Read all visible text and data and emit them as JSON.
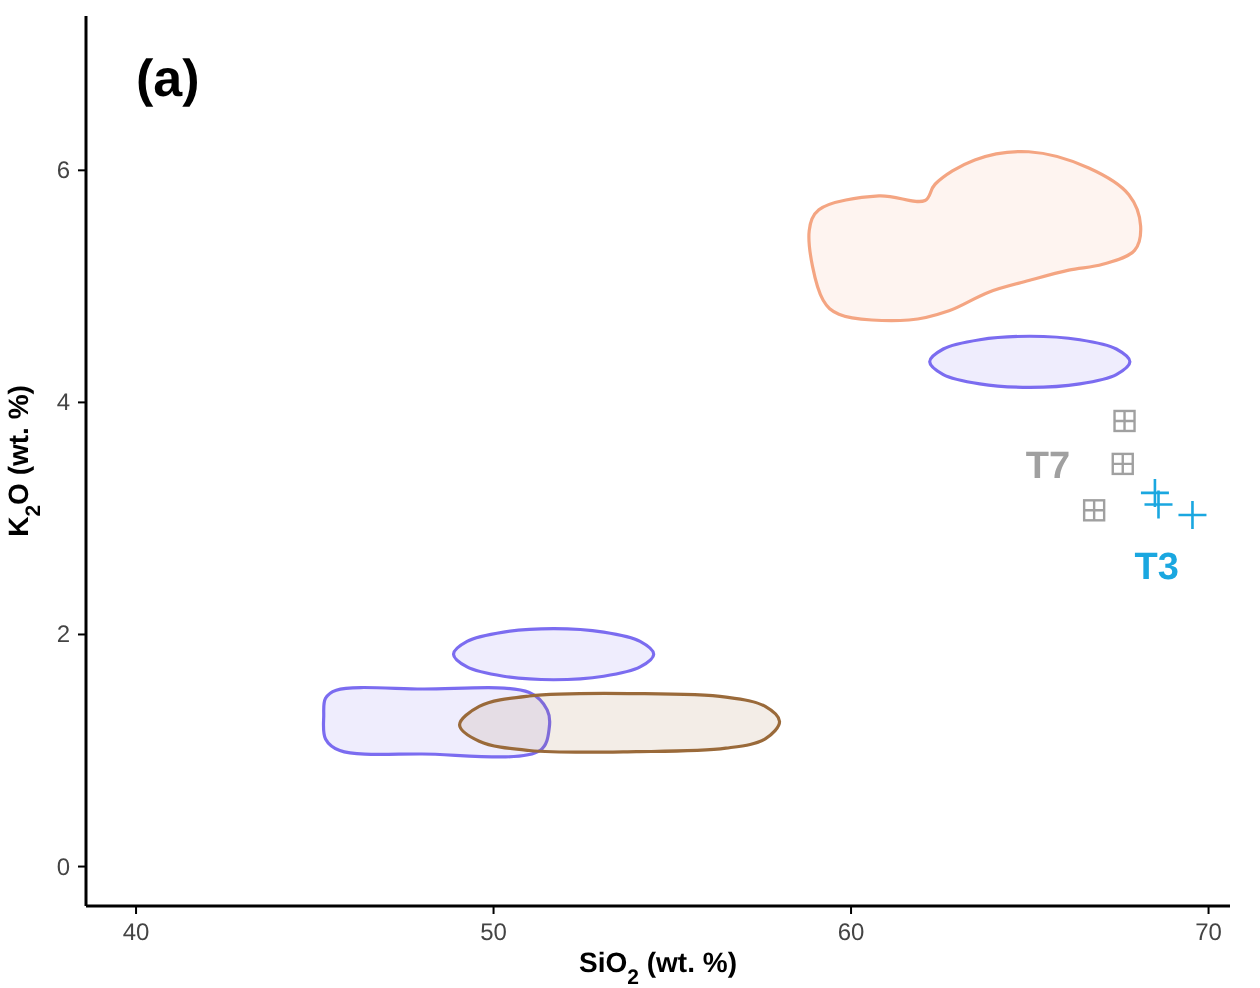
{
  "chart_data": {
    "type": "scatter",
    "xlabel": "SiO$_{2}$ (wt. %)",
    "ylabel": "K$_{2}$O (wt. %)",
    "annotations": [
      "(a)"
    ],
    "xlim": [
      38.6,
      70.6
    ],
    "ylim": [
      -0.34,
      7.33
    ],
    "xticks": [
      40,
      50,
      60,
      70
    ],
    "yticks": [
      0,
      2,
      4,
      6
    ],
    "grid": false,
    "series": [
      {
        "type": "area",
        "color": "#f4a582",
        "x": [
          58.83,
          59.1,
          60.78,
          62.07,
          62.35,
          63.46,
          64.97,
          66.65,
          67.77,
          68.1,
          67.93,
          67.04,
          66.09,
          64.97,
          63.85,
          62.74,
          61.62,
          59.66,
          59.22
        ],
        "values": [
          5.48,
          5.66,
          5.78,
          5.74,
          5.88,
          6.09,
          6.16,
          6.02,
          5.79,
          5.52,
          5.31,
          5.19,
          5.14,
          5.05,
          4.95,
          4.79,
          4.71,
          4.76,
          4.88
        ]
      },
      {
        "type": "area",
        "color": "#7b6cf0",
        "x": [
          67.8,
          67.42,
          66.4,
          65,
          63.6,
          62.58,
          62.2,
          62.58,
          63.6,
          65,
          66.4,
          67.42
        ],
        "values": [
          4.35,
          4.46,
          4.54,
          4.57,
          4.54,
          4.46,
          4.35,
          4.24,
          4.16,
          4.13,
          4.16,
          4.24
        ]
      },
      {
        "type": "area",
        "color": "#7b6cf0",
        "x": [
          54.48,
          54.1,
          53.08,
          51.68,
          50.28,
          49.26,
          48.88,
          49.26,
          50.28,
          51.68,
          53.08,
          54.1
        ],
        "values": [
          1.83,
          1.94,
          2.02,
          2.05,
          2.02,
          1.94,
          1.83,
          1.72,
          1.64,
          1.61,
          1.64,
          1.72
        ]
      },
      {
        "type": "area",
        "color": "#7b6cf0",
        "x": [
          45.6,
          48,
          51,
          51.5,
          51.56,
          51.3,
          48,
          45.7,
          45.3,
          45.25,
          45.3
        ],
        "values": [
          1.52,
          1.53,
          1.5,
          1.35,
          1.2,
          1.0,
          0.97,
          1.0,
          1.1,
          1.3,
          1.45
        ]
      },
      {
        "type": "area",
        "color": "#9a6a3a",
        "x": [
          49.05,
          49.6,
          51,
          54,
          56.5,
          57.6,
          58,
          57.6,
          56.5,
          54,
          51,
          49.6
        ],
        "values": [
          1.22,
          1.38,
          1.47,
          1.49,
          1.46,
          1.38,
          1.25,
          1.1,
          1.02,
          0.99,
          1.0,
          1.08
        ]
      },
      {
        "name": "T7",
        "color": "#a0a0a0",
        "marker": "square",
        "x": [
          67.65,
          67.6,
          66.8
        ],
        "values": [
          3.84,
          3.47,
          3.07
        ]
      },
      {
        "name": "T3",
        "color": "#1aa7e0",
        "marker": "cross",
        "x": [
          68.5,
          68.6,
          69.55
        ],
        "values": [
          3.22,
          3.12,
          3.03
        ]
      }
    ]
  }
}
